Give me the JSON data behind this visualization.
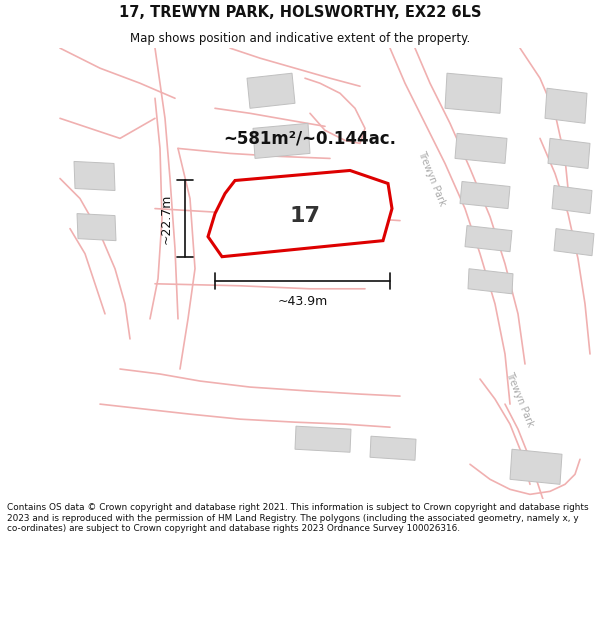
{
  "title": "17, TREWYN PARK, HOLSWORTHY, EX22 6LS",
  "subtitle": "Map shows position and indicative extent of the property.",
  "area_text": "~581m²/~0.144ac.",
  "plot_number": "17",
  "dim_width": "~43.9m",
  "dim_height": "~22.7m",
  "footer": "Contains OS data © Crown copyright and database right 2021. This information is subject to Crown copyright and database rights 2023 and is reproduced with the permission of HM Land Registry. The polygons (including the associated geometry, namely x, y co-ordinates) are subject to Crown copyright and database rights 2023 Ordnance Survey 100026316.",
  "bg_color": "#ffffff",
  "road_color": "#f0b0b0",
  "building_face": "#d8d8d8",
  "building_edge": "#c0c0c0",
  "plot_fill": "#ffffff",
  "plot_edge": "#dd0000",
  "road_label_color": "#aaaaaa",
  "title_color": "#111111",
  "dim_color": "#111111",
  "road_lw": 1.2,
  "plot_lw": 2.2,
  "building_lw": 0.7
}
